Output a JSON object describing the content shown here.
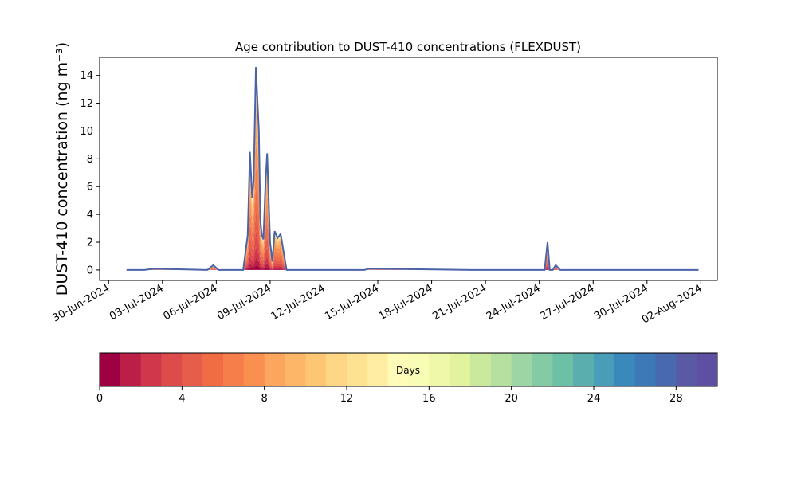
{
  "chart_data": [
    {
      "type": "area",
      "title": "Age contribution to DUST-410 concentrations (FLEXDUST)",
      "ylabel": "DUST-410 concentration (ng m⁻³)",
      "xlabel": "",
      "xlim": [
        "2024-06-29T12:00",
        "2024-08-02T22:00"
      ],
      "ylim": [
        -0.75,
        15.3
      ],
      "yticks": [
        0,
        2,
        4,
        6,
        8,
        10,
        12,
        14
      ],
      "xtick_dates": [
        "2024-06-30",
        "2024-07-03",
        "2024-07-06",
        "2024-07-09",
        "2024-07-12",
        "2024-07-15",
        "2024-07-18",
        "2024-07-21",
        "2024-07-24",
        "2024-07-27",
        "2024-07-30",
        "2024-08-02"
      ],
      "xtick_labels": [
        "30-Jun-2024",
        "03-Jul-2024",
        "06-Jul-2024",
        "09-Jul-2024",
        "12-Jul-2024",
        "15-Jul-2024",
        "18-Jul-2024",
        "21-Jul-2024",
        "24-Jul-2024",
        "27-Jul-2024",
        "30-Jul-2024",
        "02-Aug-2024"
      ],
      "grid": false,
      "stacked": true,
      "series_note_stack": "stacked by age in days, 0 (bottom) to 30 (top)",
      "total": {
        "x": [
          "2024-07-01T00:00",
          "2024-07-02T00:00",
          "2024-07-02T12:00",
          "2024-07-05T12:00",
          "2024-07-05T20:00",
          "2024-07-06T03:00",
          "2024-07-07T12:00",
          "2024-07-07T18:00",
          "2024-07-07T21:00",
          "2024-07-08T00:00",
          "2024-07-08T02:00",
          "2024-07-08T05:00",
          "2024-07-08T09:00",
          "2024-07-08T11:00",
          "2024-07-08T13:00",
          "2024-07-08T15:00",
          "2024-07-08T18:00",
          "2024-07-08T20:00",
          "2024-07-09T00:00",
          "2024-07-09T03:00",
          "2024-07-09T06:00",
          "2024-07-09T10:00",
          "2024-07-09T14:00",
          "2024-07-09T22:00",
          "2024-07-10T02:00",
          "2024-07-10T04:00",
          "2024-07-10T06:00",
          "2024-07-10T09:00",
          "2024-07-10T14:00",
          "2024-07-10T16:00",
          "2024-07-11T00:00",
          "2024-07-13T00:00",
          "2024-07-13T12:00",
          "2024-07-13T22:00",
          "2024-07-14T06:00",
          "2024-07-14T12:00",
          "2024-07-20T06:00",
          "2024-07-20T12:00",
          "2024-07-20T18:00",
          "2024-07-22T12:00",
          "2024-07-22T18:00",
          "2024-07-23T00:00",
          "2024-07-23T22:00",
          "2024-07-24T02:00",
          "2024-07-24T04:00",
          "2024-07-24T07:00",
          "2024-07-24T11:00",
          "2024-07-24T14:00",
          "2024-07-24T18:00",
          "2024-07-24T22:00",
          "2024-07-25T04:00",
          "2024-07-26T00:00",
          "2024-08-01T21:00"
        ],
        "y": [
          0.0,
          0.0,
          0.1,
          0.0,
          0.35,
          0.0,
          0.0,
          2.5,
          8.5,
          5.2,
          6.5,
          14.6,
          10.0,
          3.5,
          2.5,
          2.2,
          6.5,
          8.4,
          2.0,
          0.6,
          2.8,
          2.3,
          2.6,
          0.0,
          0.0,
          0.0,
          0.0,
          0.0,
          0.0,
          0.0,
          0.0,
          0.0,
          0.0,
          0.0,
          0.0,
          0.1,
          0.0,
          0.0,
          0.0,
          0.0,
          0.0,
          0.0,
          0.0,
          0.0,
          0.0,
          0.0,
          2.0,
          0.0,
          0.0,
          0.35,
          0.0,
          0.0,
          0.0
        ]
      },
      "line_color": "#4a63a9",
      "colorbar": {
        "label": "Days",
        "range": [
          0,
          30
        ],
        "ticks": [
          0,
          4,
          8,
          12,
          16,
          20,
          24,
          28
        ],
        "colors": [
          "#9e0142",
          "#bb1f48",
          "#d0374a",
          "#dd4b4b",
          "#e65d4a",
          "#ef6c45",
          "#f67e4b",
          "#f9904f",
          "#fca55e",
          "#fdb567",
          "#fdc673",
          "#fed685",
          "#fee292",
          "#ffeea1",
          "#fffbb8",
          "#f8fcb4",
          "#eef8a8",
          "#e1f39c",
          "#cbe99d",
          "#b5e0a0",
          "#9dd6a4",
          "#84cba5",
          "#6cc0a5",
          "#5aaeae",
          "#4a9db9",
          "#3a88bc",
          "#3c79b6",
          "#4869ae",
          "#5a5aa4",
          "#5e4fa2"
        ]
      }
    }
  ]
}
